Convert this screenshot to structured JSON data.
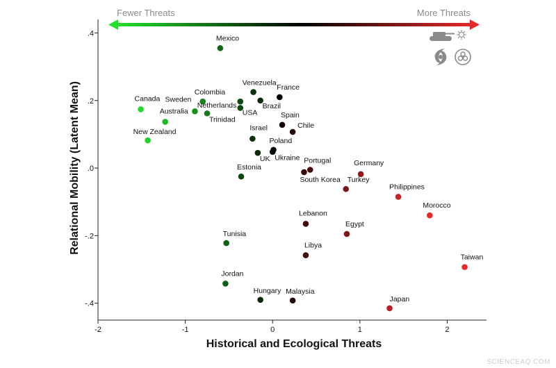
{
  "chart_data": {
    "type": "scatter",
    "title": "",
    "xlabel": "Historical and Ecological Threats",
    "ylabel": "Relational Mobility (Latent Mean)",
    "xlim": [
      -2,
      2.45
    ],
    "ylim": [
      -0.45,
      0.44
    ],
    "x_ticks": [
      -2,
      -1,
      0,
      1,
      2
    ],
    "x_tick_labels": [
      "-2",
      "-1",
      "0",
      "1",
      "2"
    ],
    "y_ticks": [
      0.4,
      0.2,
      0.0,
      -0.2,
      -0.4
    ],
    "y_tick_labels": [
      ".4",
      ".2",
      ".0",
      "-.2",
      "-.4"
    ],
    "grid": false,
    "threat_scale": {
      "left_label": "Fewer Threats",
      "right_label": "More Threats",
      "low_color": "#22e02a",
      "mid_color": "#000000",
      "high_color": "#e8282a",
      "icons": [
        "tank-icon",
        "virus-icon",
        "hurricane-icon",
        "biohazard-icon"
      ]
    },
    "points": [
      {
        "name": "Mexico",
        "x": -0.6,
        "y": 0.355
      },
      {
        "name": "Venezuela",
        "x": -0.22,
        "y": 0.225
      },
      {
        "name": "France",
        "x": 0.08,
        "y": 0.21
      },
      {
        "name": "Brazil",
        "x": -0.14,
        "y": 0.2
      },
      {
        "name": "Colombia",
        "x": -0.8,
        "y": 0.197
      },
      {
        "name": "Netherlands",
        "x": -0.37,
        "y": 0.197
      },
      {
        "name": "USA",
        "x": -0.37,
        "y": 0.178
      },
      {
        "name": "Canada",
        "x": -1.51,
        "y": 0.174
      },
      {
        "name": "Sweden",
        "x": -0.89,
        "y": 0.168
      },
      {
        "name": "Trinidad",
        "x": -0.75,
        "y": 0.162
      },
      {
        "name": "Australia",
        "x": -1.23,
        "y": 0.137
      },
      {
        "name": "Spain",
        "x": 0.11,
        "y": 0.128
      },
      {
        "name": "Chile",
        "x": 0.23,
        "y": 0.107
      },
      {
        "name": "New Zealand",
        "x": -1.43,
        "y": 0.082
      },
      {
        "name": "Israel",
        "x": -0.23,
        "y": 0.087
      },
      {
        "name": "Poland",
        "x": 0.01,
        "y": 0.054
      },
      {
        "name": "Ukraine",
        "x": 0.0,
        "y": 0.048
      },
      {
        "name": "UK",
        "x": -0.17,
        "y": 0.045
      },
      {
        "name": "Portugal",
        "x": 0.43,
        "y": -0.005
      },
      {
        "name": "South Korea",
        "x": 0.36,
        "y": -0.012
      },
      {
        "name": "Estonia",
        "x": -0.36,
        "y": -0.025
      },
      {
        "name": "Germany",
        "x": 1.01,
        "y": -0.018
      },
      {
        "name": "Turkey",
        "x": 0.84,
        "y": -0.062
      },
      {
        "name": "Philippines",
        "x": 1.44,
        "y": -0.085
      },
      {
        "name": "Morocco",
        "x": 1.8,
        "y": -0.14
      },
      {
        "name": "Lebanon",
        "x": 0.38,
        "y": -0.165
      },
      {
        "name": "Egypt",
        "x": 0.85,
        "y": -0.195
      },
      {
        "name": "Tunisia",
        "x": -0.53,
        "y": -0.222
      },
      {
        "name": "Libya",
        "x": 0.38,
        "y": -0.258
      },
      {
        "name": "Taiwan",
        "x": 2.2,
        "y": -0.293
      },
      {
        "name": "Jordan",
        "x": -0.54,
        "y": -0.342
      },
      {
        "name": "Hungary",
        "x": -0.14,
        "y": -0.39
      },
      {
        "name": "Malaysia",
        "x": 0.23,
        "y": -0.392
      },
      {
        "name": "Japan",
        "x": 1.34,
        "y": -0.415
      }
    ]
  },
  "watermark": "SCIENCEAQ.COM"
}
